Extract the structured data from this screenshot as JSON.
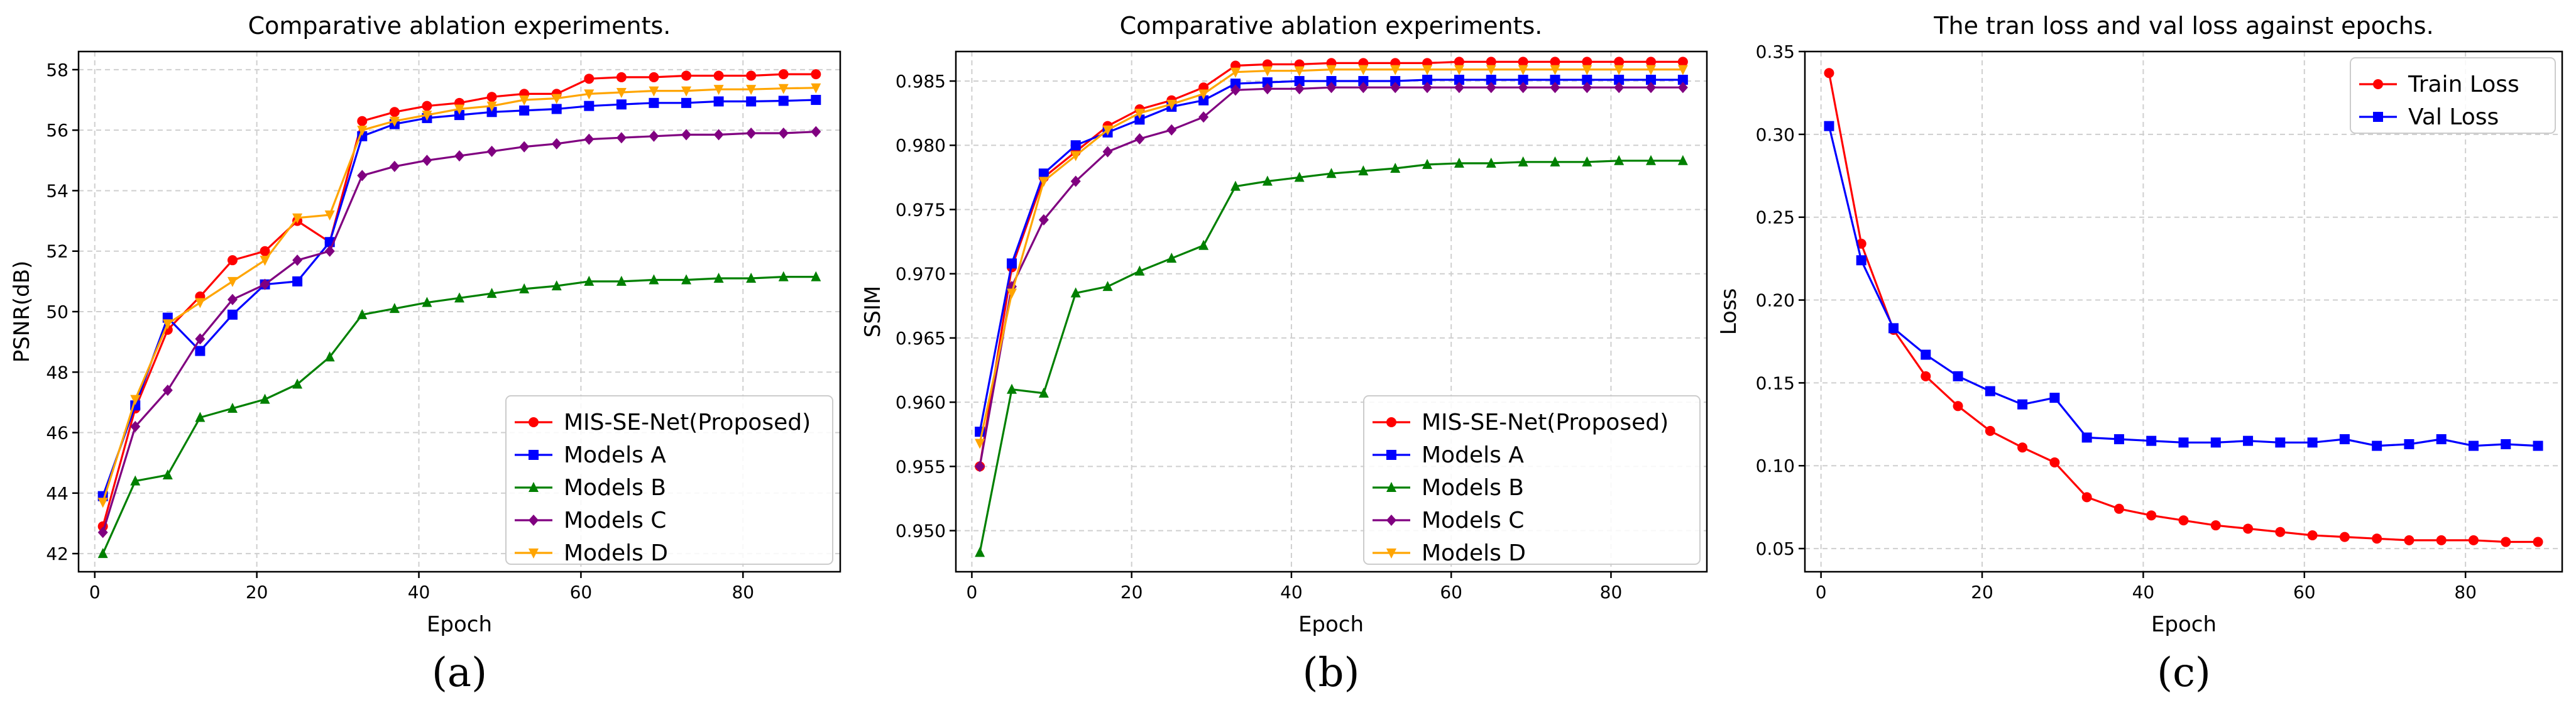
{
  "chart_data": [
    {
      "type": "line",
      "title": "Comparative ablation experiments.",
      "xlabel": "Epoch",
      "ylabel": "PSNR(dB)",
      "caption": "(a)",
      "xlim": [
        -2,
        92
      ],
      "ylim": [
        41.4,
        58.6
      ],
      "xticks": [
        0,
        20,
        40,
        60,
        80
      ],
      "yticks": [
        42,
        44,
        46,
        48,
        50,
        52,
        54,
        56,
        58
      ],
      "ytick_labels": [
        "42",
        "44",
        "46",
        "48",
        "50",
        "52",
        "54",
        "56",
        "58"
      ],
      "legend_position": "lower-right",
      "series": [
        {
          "name": "MIS-SE-Net(Proposed)",
          "color": "#ff0000",
          "marker": "circle",
          "x": [
            1,
            5,
            9,
            13,
            17,
            21,
            25,
            29,
            33,
            37,
            41,
            45,
            49,
            53,
            57,
            61,
            65,
            69,
            73,
            77,
            81,
            85,
            89
          ],
          "values": [
            42.9,
            46.8,
            49.4,
            50.5,
            51.7,
            52.0,
            53.0,
            52.3,
            56.3,
            56.6,
            56.8,
            56.9,
            57.1,
            57.2,
            57.2,
            57.7,
            57.75,
            57.75,
            57.8,
            57.8,
            57.8,
            57.85,
            57.85
          ]
        },
        {
          "name": "Models A",
          "color": "#0000ff",
          "marker": "square",
          "x": [
            1,
            5,
            9,
            13,
            17,
            21,
            25,
            29,
            33,
            37,
            41,
            45,
            49,
            53,
            57,
            61,
            65,
            69,
            73,
            77,
            81,
            85,
            89
          ],
          "values": [
            43.9,
            46.9,
            49.8,
            48.7,
            49.9,
            50.9,
            51.0,
            52.3,
            55.8,
            56.2,
            56.4,
            56.5,
            56.6,
            56.65,
            56.7,
            56.8,
            56.85,
            56.9,
            56.9,
            56.95,
            56.95,
            56.97,
            57.0
          ]
        },
        {
          "name": "Models B",
          "color": "#008000",
          "marker": "triangle-up",
          "x": [
            1,
            5,
            9,
            13,
            17,
            21,
            25,
            29,
            33,
            37,
            41,
            45,
            49,
            53,
            57,
            61,
            65,
            69,
            73,
            77,
            81,
            85,
            89
          ],
          "values": [
            42.0,
            44.4,
            44.6,
            46.5,
            46.8,
            47.1,
            47.6,
            48.5,
            49.9,
            50.1,
            50.3,
            50.45,
            50.6,
            50.75,
            50.85,
            51.0,
            51.0,
            51.05,
            51.05,
            51.1,
            51.1,
            51.15,
            51.15
          ]
        },
        {
          "name": "Models C",
          "color": "#800080",
          "marker": "diamond",
          "x": [
            1,
            5,
            9,
            13,
            17,
            21,
            25,
            29,
            33,
            37,
            41,
            45,
            49,
            53,
            57,
            61,
            65,
            69,
            73,
            77,
            81,
            85,
            89
          ],
          "values": [
            42.7,
            46.2,
            47.4,
            49.1,
            50.4,
            50.9,
            51.7,
            52.0,
            54.5,
            54.8,
            55.0,
            55.15,
            55.3,
            55.45,
            55.55,
            55.7,
            55.75,
            55.8,
            55.85,
            55.85,
            55.9,
            55.9,
            55.95
          ]
        },
        {
          "name": "Models D",
          "color": "#ffa500",
          "marker": "triangle-down",
          "x": [
            1,
            5,
            9,
            13,
            17,
            21,
            25,
            29,
            33,
            37,
            41,
            45,
            49,
            53,
            57,
            61,
            65,
            69,
            73,
            77,
            81,
            85,
            89
          ],
          "values": [
            43.7,
            47.1,
            49.6,
            50.3,
            51.0,
            51.7,
            53.1,
            53.2,
            56.0,
            56.3,
            56.5,
            56.7,
            56.8,
            57.0,
            57.05,
            57.2,
            57.25,
            57.3,
            57.3,
            57.35,
            57.35,
            57.38,
            57.4
          ]
        }
      ]
    },
    {
      "type": "line",
      "title": "Comparative ablation experiments.",
      "xlabel": "Epoch",
      "ylabel": "SSIM",
      "caption": "(b)",
      "xlim": [
        -2,
        92
      ],
      "ylim": [
        0.9468,
        0.9873
      ],
      "xticks": [
        0,
        20,
        40,
        60,
        80
      ],
      "yticks": [
        0.95,
        0.955,
        0.96,
        0.965,
        0.97,
        0.975,
        0.98,
        0.985
      ],
      "ytick_labels": [
        "0.950",
        "0.955",
        "0.960",
        "0.965",
        "0.970",
        "0.975",
        "0.980",
        "0.985"
      ],
      "legend_position": "lower-right",
      "series": [
        {
          "name": "MIS-SE-Net(Proposed)",
          "color": "#ff0000",
          "marker": "circle",
          "x": [
            1,
            5,
            9,
            13,
            17,
            21,
            25,
            29,
            33,
            37,
            41,
            45,
            49,
            53,
            57,
            61,
            65,
            69,
            73,
            77,
            81,
            85,
            89
          ],
          "values": [
            0.955,
            0.9705,
            0.9775,
            0.9795,
            0.9815,
            0.9828,
            0.9835,
            0.9845,
            0.9862,
            0.9863,
            0.9863,
            0.9864,
            0.9864,
            0.9864,
            0.9864,
            0.9865,
            0.9865,
            0.9865,
            0.9865,
            0.9865,
            0.9865,
            0.9865,
            0.9865
          ]
        },
        {
          "name": "Models A",
          "color": "#0000ff",
          "marker": "square",
          "x": [
            1,
            5,
            9,
            13,
            17,
            21,
            25,
            29,
            33,
            37,
            41,
            45,
            49,
            53,
            57,
            61,
            65,
            69,
            73,
            77,
            81,
            85,
            89
          ],
          "values": [
            0.9577,
            0.9708,
            0.9778,
            0.98,
            0.981,
            0.982,
            0.983,
            0.9835,
            0.9848,
            0.9849,
            0.985,
            0.985,
            0.985,
            0.985,
            0.9851,
            0.9851,
            0.9851,
            0.9851,
            0.9851,
            0.9851,
            0.9851,
            0.9851,
            0.9851
          ]
        },
        {
          "name": "Models B",
          "color": "#008000",
          "marker": "triangle-up",
          "x": [
            1,
            5,
            9,
            13,
            17,
            21,
            25,
            29,
            33,
            37,
            41,
            45,
            49,
            53,
            57,
            61,
            65,
            69,
            73,
            77,
            81,
            85,
            89
          ],
          "values": [
            0.9483,
            0.961,
            0.9607,
            0.9685,
            0.969,
            0.9702,
            0.9712,
            0.9722,
            0.9768,
            0.9772,
            0.9775,
            0.9778,
            0.978,
            0.9782,
            0.9785,
            0.9786,
            0.9786,
            0.9787,
            0.9787,
            0.9787,
            0.9788,
            0.9788,
            0.9788
          ]
        },
        {
          "name": "Models C",
          "color": "#800080",
          "marker": "diamond",
          "x": [
            1,
            5,
            9,
            13,
            17,
            21,
            25,
            29,
            33,
            37,
            41,
            45,
            49,
            53,
            57,
            61,
            65,
            69,
            73,
            77,
            81,
            85,
            89
          ],
          "values": [
            0.955,
            0.969,
            0.9742,
            0.9772,
            0.9795,
            0.9805,
            0.9812,
            0.9822,
            0.9843,
            0.9844,
            0.9844,
            0.9845,
            0.9845,
            0.9845,
            0.9845,
            0.9845,
            0.9845,
            0.9845,
            0.9845,
            0.9845,
            0.9845,
            0.9845,
            0.9845
          ]
        },
        {
          "name": "Models D",
          "color": "#ffa500",
          "marker": "triangle-down",
          "x": [
            1,
            5,
            9,
            13,
            17,
            21,
            25,
            29,
            33,
            37,
            41,
            45,
            49,
            53,
            57,
            61,
            65,
            69,
            73,
            77,
            81,
            85,
            89
          ],
          "values": [
            0.9568,
            0.9685,
            0.9772,
            0.9792,
            0.9812,
            0.9825,
            0.9832,
            0.984,
            0.9857,
            0.9858,
            0.9858,
            0.9859,
            0.9859,
            0.9859,
            0.9859,
            0.9859,
            0.9859,
            0.9859,
            0.9859,
            0.9859,
            0.9859,
            0.9859,
            0.9859
          ]
        }
      ]
    },
    {
      "type": "line",
      "title": "The tran loss and val loss against epochs.",
      "xlabel": "Epoch",
      "ylabel": "Loss",
      "caption": "(c)",
      "xlim": [
        -2,
        92
      ],
      "ylim": [
        0.036,
        0.35
      ],
      "xticks": [
        0,
        20,
        40,
        60,
        80
      ],
      "yticks": [
        0.05,
        0.1,
        0.15,
        0.2,
        0.25,
        0.3,
        0.35
      ],
      "ytick_labels": [
        "0.05",
        "0.10",
        "0.15",
        "0.20",
        "0.25",
        "0.30",
        "0.35"
      ],
      "legend_position": "top-right",
      "series": [
        {
          "name": "Train Loss",
          "color": "#ff0000",
          "marker": "circle",
          "x": [
            1,
            5,
            9,
            13,
            17,
            21,
            25,
            29,
            33,
            37,
            41,
            45,
            49,
            53,
            57,
            61,
            65,
            69,
            73,
            77,
            81,
            85,
            89
          ],
          "values": [
            0.337,
            0.234,
            0.182,
            0.154,
            0.136,
            0.121,
            0.111,
            0.102,
            0.081,
            0.074,
            0.07,
            0.067,
            0.064,
            0.062,
            0.06,
            0.058,
            0.057,
            0.056,
            0.055,
            0.055,
            0.055,
            0.054,
            0.054
          ]
        },
        {
          "name": "Val Loss",
          "color": "#0000ff",
          "marker": "square",
          "x": [
            1,
            5,
            9,
            13,
            17,
            21,
            25,
            29,
            33,
            37,
            41,
            45,
            49,
            53,
            57,
            61,
            65,
            69,
            73,
            77,
            81,
            85,
            89
          ],
          "values": [
            0.305,
            0.224,
            0.183,
            0.167,
            0.154,
            0.145,
            0.137,
            0.141,
            0.117,
            0.116,
            0.115,
            0.114,
            0.114,
            0.115,
            0.114,
            0.114,
            0.116,
            0.112,
            0.113,
            0.116,
            0.112,
            0.113,
            0.112
          ]
        }
      ]
    }
  ]
}
